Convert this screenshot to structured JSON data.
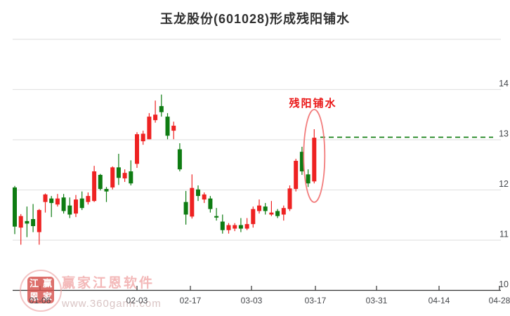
{
  "title": "玉龙股份(601028)形成残阳铺水",
  "annotation": {
    "label": "残阳铺水"
  },
  "watermark": {
    "brand": "赢家江恩软件",
    "url": "www.360gann.com",
    "logo_chars": [
      "江",
      "赢",
      "恩",
      "家"
    ]
  },
  "colors": {
    "up": "#ee2222",
    "down": "#0e7c12",
    "ref_line": "#0a7a0a",
    "annotation": "#ea1717",
    "ellipse": "#f27d7d",
    "grid": "#e4e4e4",
    "axis": "#333333",
    "tick_text": "#45474b",
    "title_text": "#303030"
  },
  "chart_data": {
    "type": "candlestick",
    "title": "玉龙股份(601028)形成残阳铺水",
    "x_tick_labels": [
      "01-06",
      "02-03",
      "02-17",
      "03-03",
      "03-17",
      "03-31",
      "04-14",
      "04-28"
    ],
    "y_tick_labels": [
      "14",
      "13",
      "12",
      "11",
      "10"
    ],
    "y_gridline_values": [
      15,
      14,
      13,
      12,
      11
    ],
    "ylim": [
      10,
      15
    ],
    "grid": true,
    "legend": false,
    "ref_line": {
      "value": 13.05,
      "style": "dashed"
    },
    "highlight": {
      "candle_index": 49,
      "label": "残阳铺水"
    },
    "candles_format": [
      "open",
      "high",
      "low",
      "close"
    ],
    "candles": [
      [
        12.05,
        12.08,
        11.12,
        11.27
      ],
      [
        11.25,
        11.52,
        10.91,
        11.48
      ],
      [
        11.38,
        11.67,
        11.06,
        11.33
      ],
      [
        11.42,
        11.72,
        11.16,
        11.28
      ],
      [
        11.16,
        11.62,
        10.91,
        11.6
      ],
      [
        11.76,
        11.93,
        11.55,
        11.91
      ],
      [
        11.83,
        11.88,
        11.46,
        11.74
      ],
      [
        11.71,
        11.92,
        11.67,
        11.83
      ],
      [
        11.85,
        11.92,
        11.53,
        11.58
      ],
      [
        11.69,
        11.85,
        11.44,
        11.51
      ],
      [
        11.53,
        11.9,
        11.46,
        11.81
      ],
      [
        11.83,
        11.97,
        11.6,
        11.64
      ],
      [
        11.76,
        11.95,
        11.71,
        11.88
      ],
      [
        11.78,
        12.48,
        11.76,
        12.37
      ],
      [
        12.3,
        12.32,
        11.99,
        12.02
      ],
      [
        12.02,
        12.06,
        11.76,
        11.97
      ],
      [
        12.05,
        12.47,
        12.01,
        12.45
      ],
      [
        12.45,
        12.72,
        12.1,
        12.24
      ],
      [
        12.23,
        12.41,
        12.16,
        12.34
      ],
      [
        12.37,
        12.59,
        12.09,
        12.13
      ],
      [
        12.52,
        13.15,
        12.44,
        13.11
      ],
      [
        12.97,
        13.18,
        12.9,
        13.12
      ],
      [
        13.01,
        13.53,
        13.01,
        13.46
      ],
      [
        13.39,
        13.78,
        13.34,
        13.5
      ],
      [
        13.67,
        13.9,
        13.46,
        13.55
      ],
      [
        13.46,
        13.53,
        13.01,
        13.08
      ],
      [
        13.18,
        13.36,
        13.01,
        13.28
      ],
      [
        12.81,
        12.93,
        12.37,
        12.41
      ],
      [
        11.76,
        11.98,
        11.31,
        11.51
      ],
      [
        11.47,
        12.31,
        11.43,
        12.04
      ],
      [
        12.01,
        12.09,
        11.78,
        11.88
      ],
      [
        11.81,
        11.95,
        11.74,
        11.91
      ],
      [
        11.83,
        11.88,
        11.55,
        11.62
      ],
      [
        11.48,
        11.64,
        11.39,
        11.45
      ],
      [
        11.37,
        11.51,
        11.13,
        11.2
      ],
      [
        11.2,
        11.34,
        11.13,
        11.3
      ],
      [
        11.23,
        11.34,
        11.18,
        11.3
      ],
      [
        11.3,
        11.44,
        11.16,
        11.23
      ],
      [
        11.23,
        11.44,
        11.2,
        11.32
      ],
      [
        11.32,
        11.67,
        11.25,
        11.62
      ],
      [
        11.58,
        11.81,
        11.53,
        11.69
      ],
      [
        11.67,
        11.74,
        11.51,
        11.58
      ],
      [
        11.51,
        11.78,
        11.48,
        11.55
      ],
      [
        11.58,
        11.62,
        11.44,
        11.48
      ],
      [
        11.51,
        11.69,
        11.39,
        11.64
      ],
      [
        11.62,
        12.09,
        11.58,
        12.03
      ],
      [
        12.02,
        12.62,
        11.97,
        12.58
      ],
      [
        12.76,
        12.86,
        12.3,
        12.37
      ],
      [
        12.31,
        12.41,
        12.06,
        12.13
      ],
      [
        12.17,
        13.21,
        12.13,
        13.04
      ]
    ]
  }
}
